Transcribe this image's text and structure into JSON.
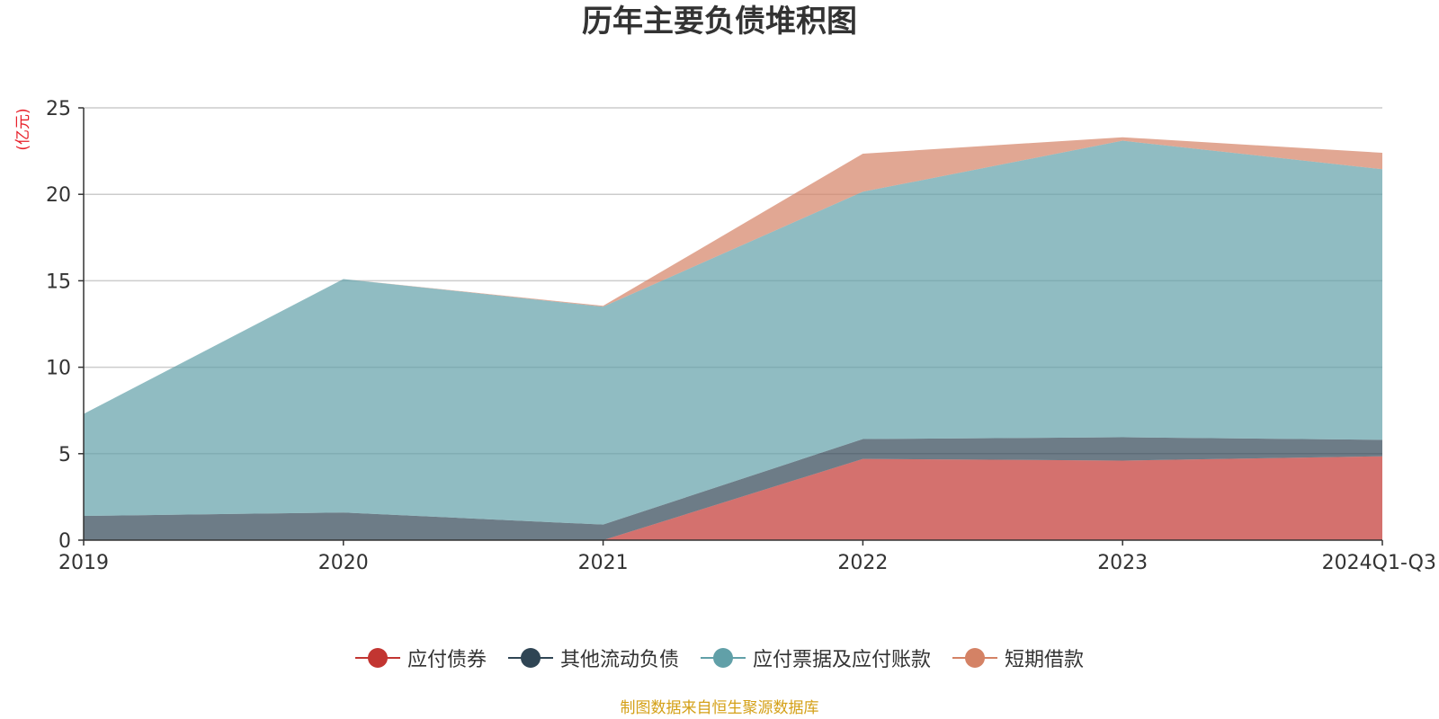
{
  "chart_data": {
    "type": "area",
    "stacked": true,
    "title": "历年主要负债堆积图",
    "y_unit_label": "(亿元)",
    "ylim": [
      0,
      25
    ],
    "y_ticks": [
      0,
      5,
      10,
      15,
      20,
      25
    ],
    "grid": true,
    "legend_position": "bottom",
    "categories": [
      "2019",
      "2020",
      "2021",
      "2022",
      "2023",
      "2024Q1-Q3"
    ],
    "series": [
      {
        "name": "应付债券",
        "color": "#c23531",
        "values": [
          0,
          0,
          0,
          4.7,
          4.6,
          4.85
        ]
      },
      {
        "name": "其他流动负债",
        "color": "#2f4554",
        "values": [
          1.4,
          1.6,
          0.9,
          1.15,
          1.35,
          0.95
        ]
      },
      {
        "name": "应付票据及应付账款",
        "color": "#61a0a8",
        "values": [
          5.9,
          13.5,
          12.6,
          14.3,
          17.15,
          15.65
        ]
      },
      {
        "name": "短期借款",
        "color": "#d48265",
        "values": [
          0,
          0,
          0.05,
          2.2,
          0.2,
          0.95
        ]
      }
    ]
  },
  "source_note": {
    "text": "制图数据来自恒生聚源数据库",
    "color": "#d4a017"
  }
}
